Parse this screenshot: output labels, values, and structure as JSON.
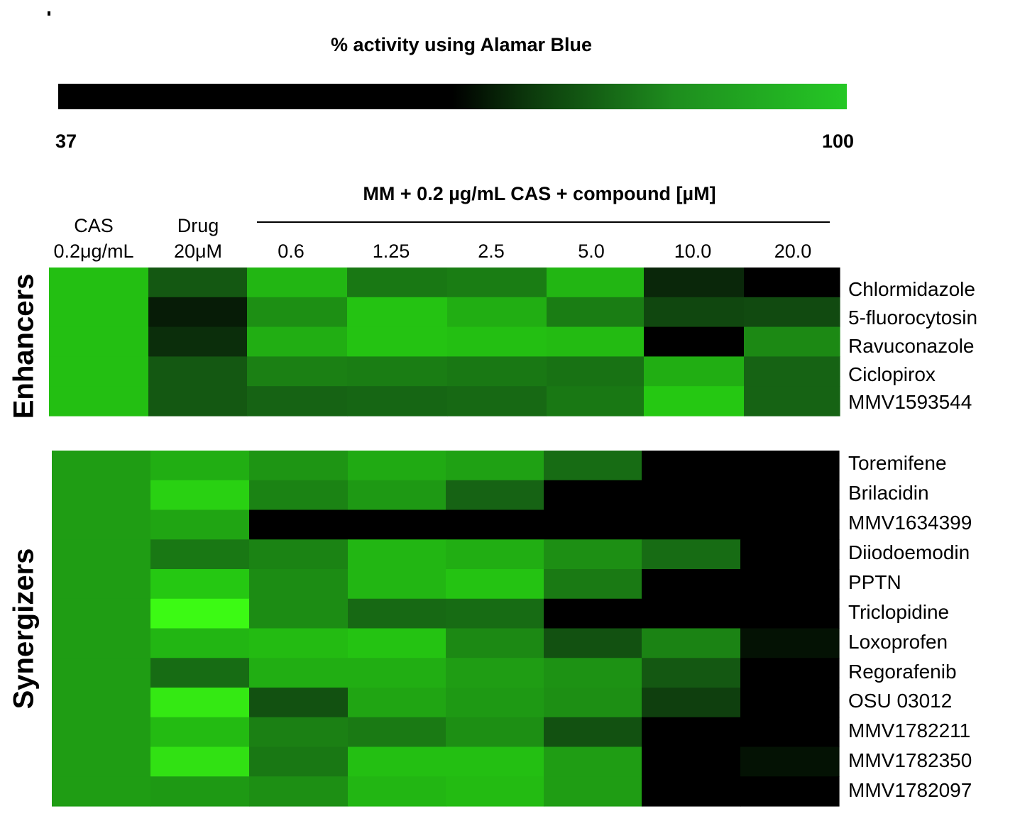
{
  "chart_data": {
    "type": "heatmap",
    "title": "% activity using Alamar Blue",
    "colorbar": {
      "min": 37,
      "max": 100,
      "min_label": "37",
      "max_label": "100"
    },
    "column_group_label": "MM + 0.2 µg/mL CAS + compound [µM]",
    "columns": [
      {
        "line1": "CAS",
        "line2": "0.2μg/mL"
      },
      {
        "line1": "Drug",
        "line2": "20μM"
      },
      {
        "line1": "",
        "line2": "0.6"
      },
      {
        "line1": "",
        "line2": "1.25"
      },
      {
        "line1": "",
        "line2": "2.5"
      },
      {
        "line1": "",
        "line2": "5.0"
      },
      {
        "line1": "",
        "line2": "10.0"
      },
      {
        "line1": "",
        "line2": "20.0"
      }
    ],
    "blocks": [
      {
        "name": "Enhancers",
        "rows": [
          "Chlormidazole",
          "5-fluorocytosin",
          "Ravuconazole",
          "Ciclopirox",
          "MMV1593544"
        ],
        "values": [
          [
            92,
            62,
            90,
            72,
            74,
            90,
            48,
            37
          ],
          [
            92,
            45,
            80,
            93,
            88,
            74,
            57,
            58
          ],
          [
            92,
            50,
            88,
            93,
            92,
            91,
            37,
            78
          ],
          [
            92,
            62,
            75,
            74,
            72,
            70,
            88,
            65
          ],
          [
            92,
            62,
            65,
            66,
            67,
            72,
            94,
            65
          ]
        ]
      },
      {
        "name": "Synergizers",
        "rows": [
          "Toremifene",
          "Brilacidin",
          "MMV1634399",
          "Diiodoemodin",
          "PPTN",
          "Triclopidine",
          "Loxoprofen",
          "Regorafenib",
          "OSU 03012",
          "MMV1782211",
          "MMV1782350",
          "MMV1782097"
        ],
        "values": [
          [
            84,
            88,
            82,
            87,
            85,
            68,
            37,
            37
          ],
          [
            84,
            95,
            76,
            83,
            65,
            37,
            37,
            37
          ],
          [
            84,
            86,
            37,
            37,
            37,
            37,
            37,
            37
          ],
          [
            84,
            72,
            76,
            90,
            88,
            80,
            68,
            37
          ],
          [
            84,
            94,
            79,
            90,
            93,
            73,
            37,
            37
          ],
          [
            84,
            100,
            79,
            67,
            68,
            37,
            37,
            37
          ],
          [
            84,
            90,
            91,
            93,
            78,
            60,
            76,
            42
          ],
          [
            84,
            68,
            88,
            88,
            84,
            81,
            62,
            37
          ],
          [
            84,
            98,
            60,
            86,
            83,
            80,
            55,
            37
          ],
          [
            84,
            91,
            75,
            73,
            80,
            60,
            37,
            37
          ],
          [
            84,
            97,
            72,
            92,
            92,
            84,
            37,
            42
          ],
          [
            84,
            83,
            80,
            90,
            91,
            84,
            37,
            37
          ]
        ]
      }
    ]
  }
}
